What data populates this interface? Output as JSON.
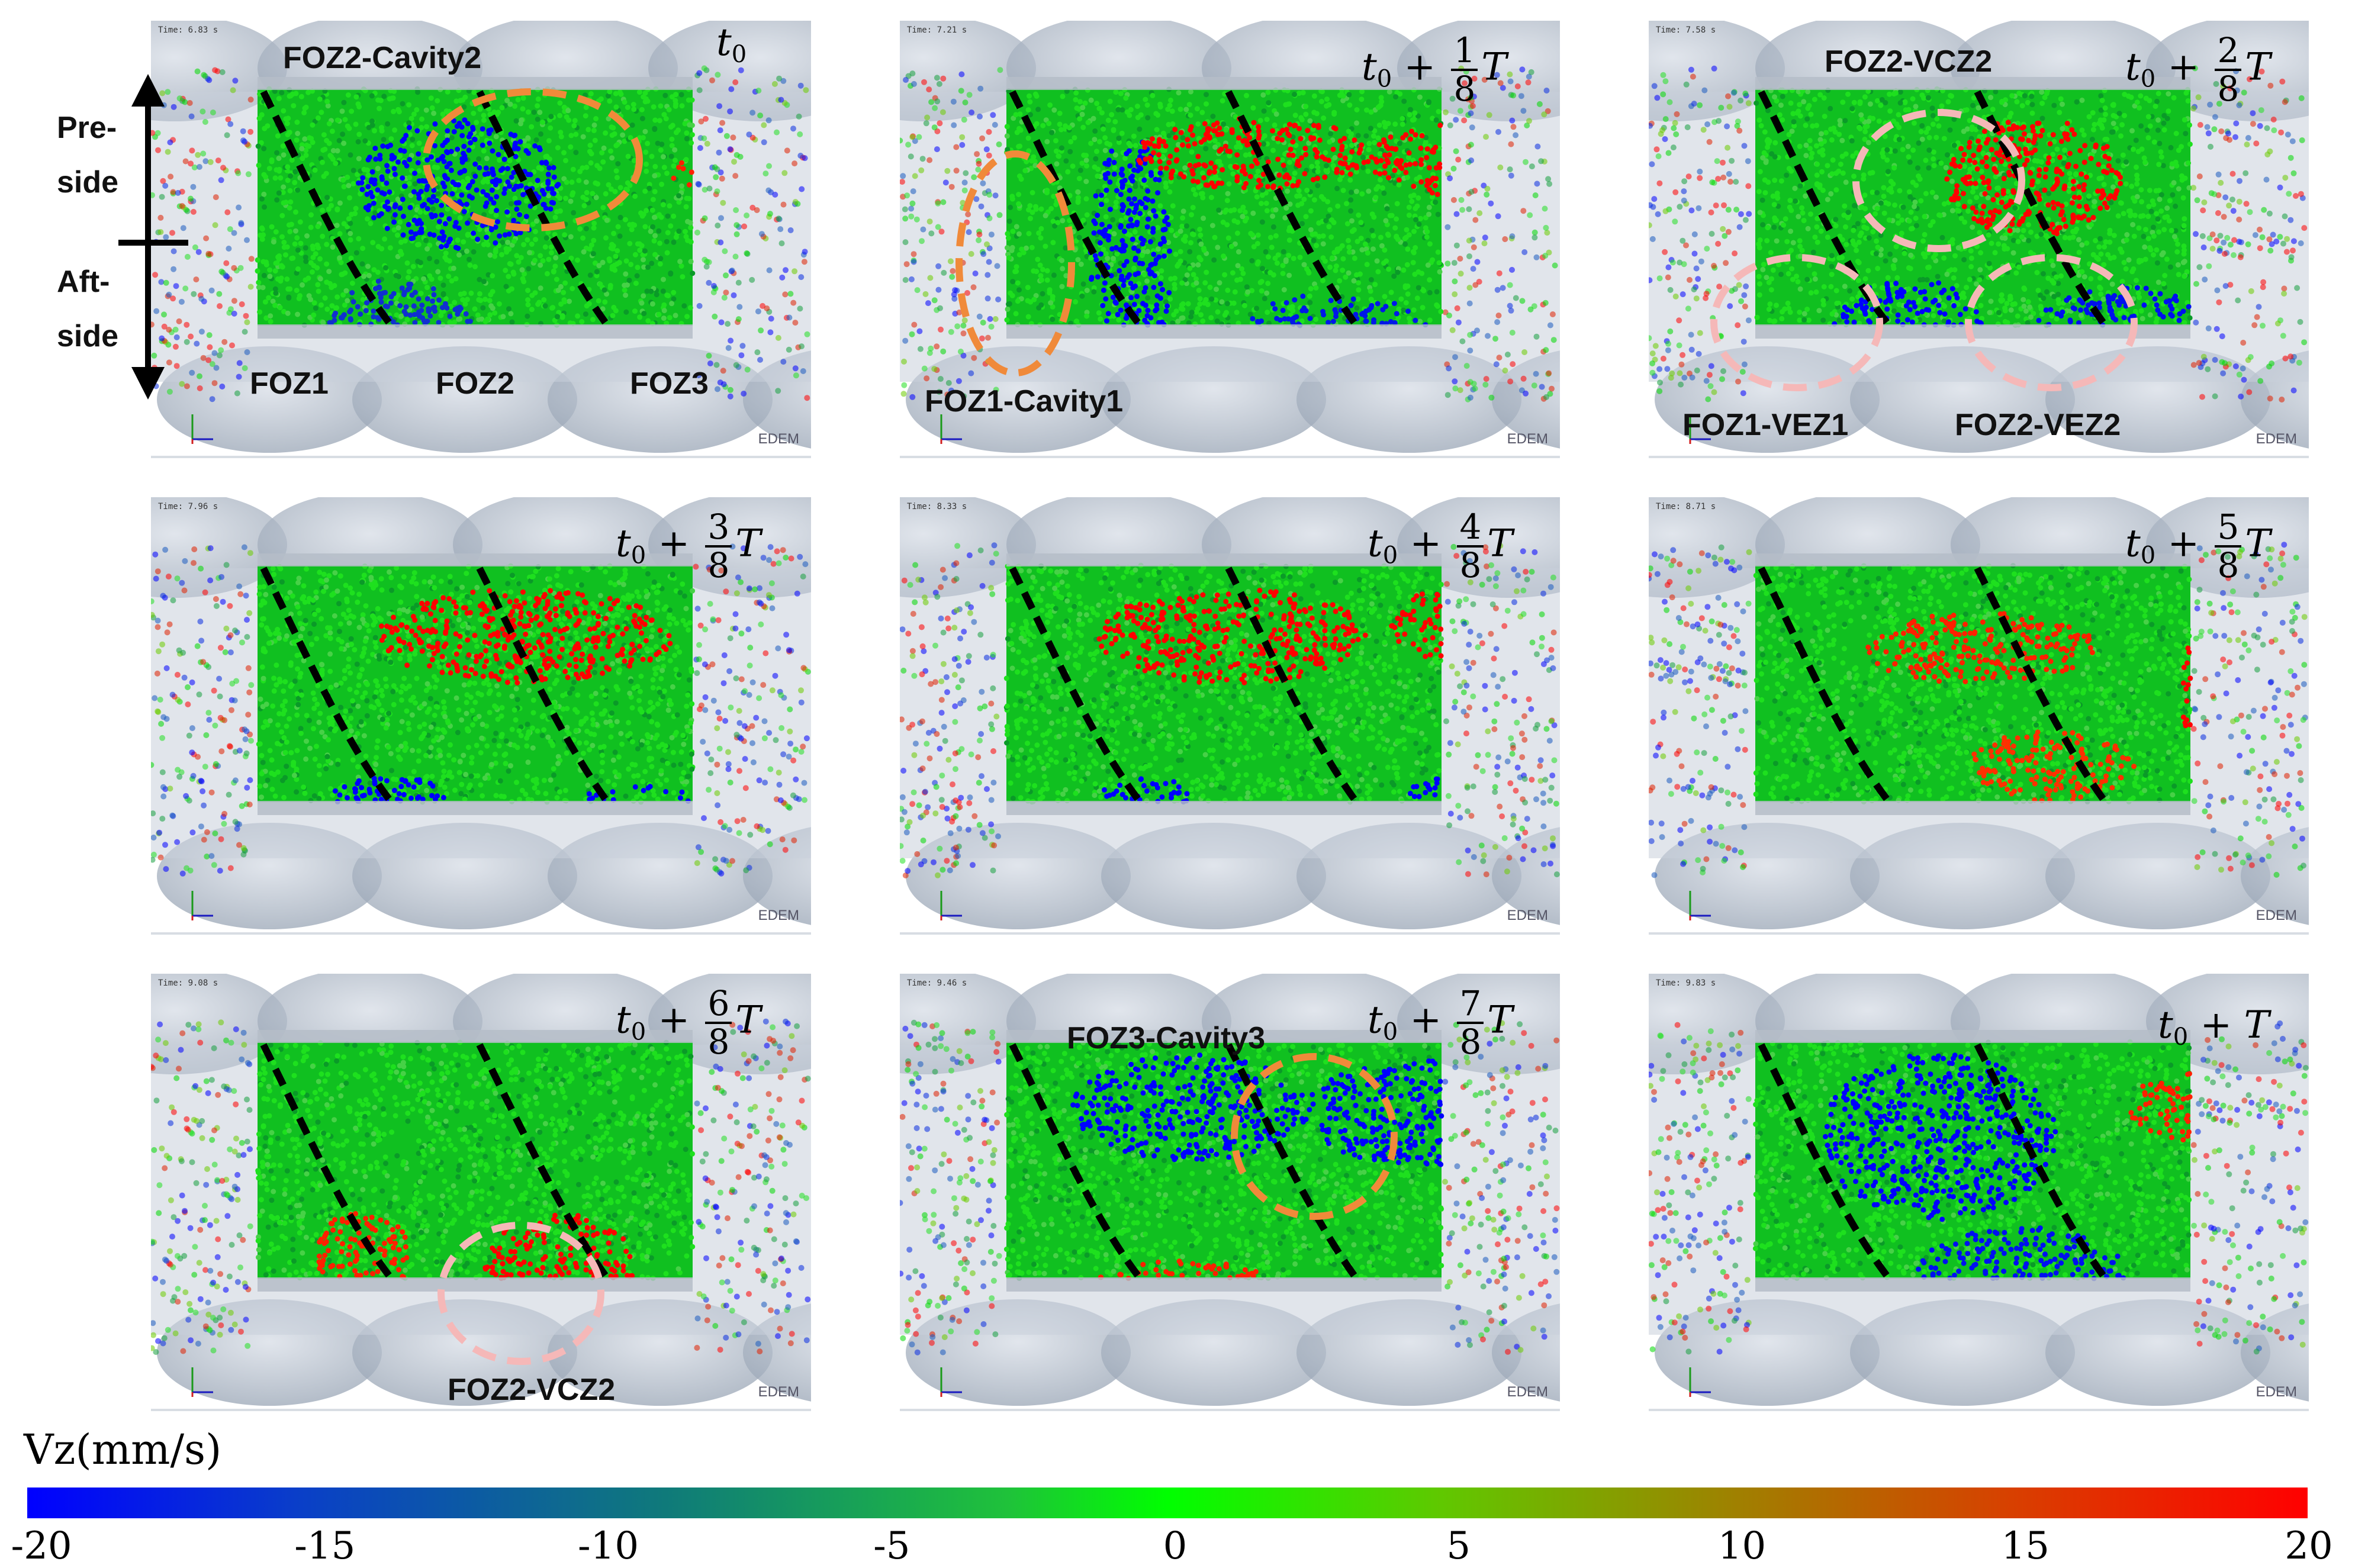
{
  "panels": [
    {
      "time": "Time: 6.83 s",
      "edem": "EDEM"
    },
    {
      "time": "Time: 7.21 s",
      "edem": "EDEM"
    },
    {
      "time": "Time: 7.58 s",
      "edem": "EDEM"
    },
    {
      "time": "Time: 7.96 s",
      "edem": "EDEM"
    },
    {
      "time": "Time: 8.33 s",
      "edem": "EDEM"
    },
    {
      "time": "Time: 8.71 s",
      "edem": "EDEM"
    },
    {
      "time": "Time: 9.08 s",
      "edem": "EDEM"
    },
    {
      "time": "Time: 9.46 s",
      "edem": "EDEM"
    },
    {
      "time": "Time: 9.83 s",
      "edem": "EDEM"
    }
  ],
  "time_labels": {
    "base": "t",
    "sub": "0",
    "plus": "+",
    "period": "T",
    "denominator": "8",
    "numerators": [
      "1",
      "2",
      "3",
      "4",
      "5",
      "6",
      "7"
    ]
  },
  "annotations": {
    "foz2_cavity2": "FOZ2-Cavity2",
    "pre_side": "Pre-",
    "pre_side2": "side",
    "aft_side": "Aft-",
    "aft_side2": "side",
    "foz1": "FOZ1",
    "foz2": "FOZ2",
    "foz3": "FOZ3",
    "foz1_cavity1": "FOZ1-Cavity1",
    "foz2_vcz2_top": "FOZ2-VCZ2",
    "foz1_vez1": "FOZ1-VEZ1",
    "foz2_vez2": "FOZ2-VEZ2",
    "foz2_vcz2_bottom": "FOZ2-VCZ2",
    "foz3_cavity3": "FOZ3-Cavity3"
  },
  "colorbar": {
    "title": "Vz(mm/s)",
    "ticks": [
      "-20",
      "-15",
      "-10",
      "-5",
      "0",
      "5",
      "10",
      "15",
      "20"
    ],
    "colors": [
      "#0000ff",
      "#00ff00",
      "#ff0000"
    ]
  }
}
